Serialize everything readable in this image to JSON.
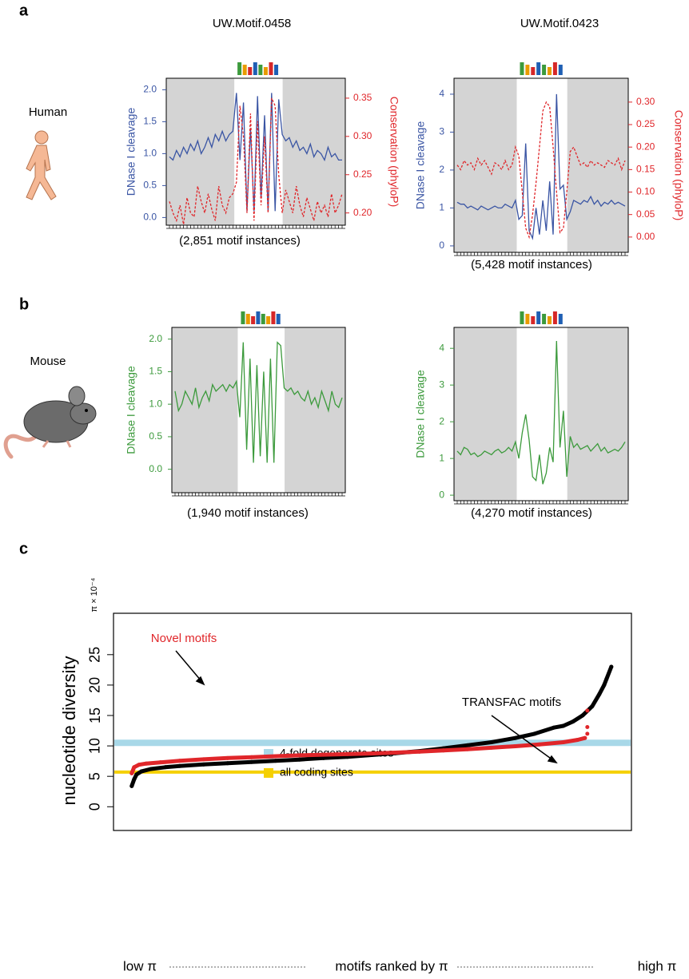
{
  "panels": [
    {
      "label": "a",
      "species": "Human"
    },
    {
      "label": "b",
      "species": "Mouse"
    },
    {
      "label": "c"
    }
  ],
  "chart_data": [
    {
      "type": "line",
      "title": "UW.Motif.0458",
      "x_label": "(2,851 motif instances)",
      "y_label": "DNase I cleavage",
      "y2_label": "Conservation (phyloP)",
      "ylim": [
        -0.12,
        2.18
      ],
      "yticks": [
        {
          "value": 0,
          "label": "0.0"
        },
        {
          "value": 0.5,
          "label": "0.5"
        },
        {
          "value": 1,
          "label": "1.0"
        },
        {
          "value": 1.5,
          "label": "1.5"
        },
        {
          "value": 2,
          "label": "2.0"
        }
      ],
      "y2lim": [
        0.184,
        0.376
      ],
      "y2ticks": [
        {
          "value": 0.2,
          "label": "0.20"
        },
        {
          "value": 0.25,
          "label": "0.25"
        },
        {
          "value": 0.3,
          "label": "0.30"
        },
        {
          "value": 0.35,
          "label": "0.35"
        }
      ],
      "series": [
        {
          "color": "#3a55a4",
          "axis": "y",
          "line_style": "solid",
          "values": [
            0.95,
            0.9,
            1.05,
            0.95,
            1.1,
            1.0,
            1.15,
            1.05,
            1.2,
            1.0,
            1.1,
            1.25,
            1.1,
            1.3,
            1.2,
            1.35,
            1.2,
            1.3,
            1.35,
            1.95,
            0.9,
            1.8,
            0.1,
            1.4,
            0.1,
            1.9,
            0.3,
            1.6,
            0.1,
            1.95,
            0.1,
            1.85,
            1.3,
            1.2,
            1.25,
            1.1,
            1.2,
            1.05,
            1.1,
            1.0,
            1.15,
            0.95,
            1.05,
            1.0,
            0.9,
            1.1,
            0.95,
            1.0,
            0.9,
            0.9
          ]
        },
        {
          "color": "#e0262a",
          "axis": "y2",
          "line_style": "dashed",
          "values": [
            0.215,
            0.2,
            0.19,
            0.21,
            0.185,
            0.22,
            0.2,
            0.195,
            0.235,
            0.215,
            0.2,
            0.225,
            0.205,
            0.19,
            0.235,
            0.21,
            0.2,
            0.22,
            0.225,
            0.24,
            0.34,
            0.3,
            0.2,
            0.33,
            0.19,
            0.32,
            0.21,
            0.3,
            0.2,
            0.35,
            0.34,
            0.25,
            0.2,
            0.23,
            0.215,
            0.2,
            0.235,
            0.21,
            0.195,
            0.22,
            0.205,
            0.19,
            0.215,
            0.2,
            0.21,
            0.195,
            0.225,
            0.2,
            0.21,
            0.225
          ]
        }
      ]
    },
    {
      "type": "line",
      "title": "UW.Motif.0423",
      "x_label": "(5,428 motif instances)",
      "y_label": "DNase I cleavage",
      "y2_label": "Conservation (phyloP)",
      "ylim": [
        -0.17,
        4.42
      ],
      "yticks": [
        0,
        1,
        2,
        3,
        4
      ],
      "y2lim": [
        -0.034,
        0.353
      ],
      "y2ticks": [
        {
          "value": 0,
          "label": "0.00"
        },
        {
          "value": 0.05,
          "label": "0.05"
        },
        {
          "value": 0.1,
          "label": "0.10"
        },
        {
          "value": 0.15,
          "label": "0.15"
        },
        {
          "value": 0.2,
          "label": "0.20"
        },
        {
          "value": 0.25,
          "label": "0.25"
        },
        {
          "value": 0.3,
          "label": "0.30"
        }
      ],
      "series": [
        {
          "color": "#3a55a4",
          "axis": "y",
          "line_style": "solid",
          "values": [
            1.15,
            1.1,
            1.1,
            1.0,
            1.05,
            1.0,
            0.95,
            1.05,
            1.0,
            0.95,
            1.0,
            1.05,
            1.0,
            1.0,
            1.1,
            1.05,
            1.0,
            1.2,
            0.7,
            0.8,
            2.7,
            0.4,
            0.2,
            1.0,
            0.3,
            1.2,
            0.4,
            1.7,
            0.3,
            4.0,
            1.5,
            1.6,
            0.7,
            0.9,
            1.2,
            1.15,
            1.1,
            1.2,
            1.15,
            1.3,
            1.1,
            1.2,
            1.05,
            1.15,
            1.1,
            1.2,
            1.1,
            1.15,
            1.1,
            1.05
          ]
        },
        {
          "color": "#e0262a",
          "axis": "y2",
          "line_style": "dashed",
          "values": [
            0.16,
            0.15,
            0.17,
            0.16,
            0.165,
            0.15,
            0.175,
            0.16,
            0.17,
            0.155,
            0.14,
            0.165,
            0.16,
            0.15,
            0.17,
            0.15,
            0.16,
            0.2,
            0.18,
            0.1,
            0.02,
            0.0,
            0.05,
            0.12,
            0.2,
            0.28,
            0.3,
            0.29,
            0.2,
            0.1,
            0.01,
            0.02,
            0.1,
            0.19,
            0.2,
            0.18,
            0.16,
            0.165,
            0.155,
            0.17,
            0.16,
            0.165,
            0.16,
            0.155,
            0.17,
            0.165,
            0.16,
            0.175,
            0.15,
            0.17
          ]
        }
      ]
    },
    {
      "type": "line",
      "x_label": "(1,940 motif instances)",
      "y_label": "DNase I cleavage",
      "ylim": [
        -0.36,
        2.18
      ],
      "yticks": [
        {
          "value": 0,
          "label": "0.0"
        },
        {
          "value": 0.5,
          "label": "0.5"
        },
        {
          "value": 1,
          "label": "1.0"
        },
        {
          "value": 1.5,
          "label": "1.5"
        },
        {
          "value": 2,
          "label": "2.0"
        }
      ],
      "series": [
        {
          "color": "#3c9a3c",
          "axis": "y",
          "line_style": "solid",
          "values": [
            1.2,
            0.9,
            1.0,
            1.2,
            1.1,
            1.0,
            1.25,
            0.95,
            1.1,
            1.2,
            1.05,
            1.3,
            1.2,
            1.25,
            1.3,
            1.2,
            1.3,
            1.25,
            1.35,
            0.8,
            1.95,
            0.3,
            1.7,
            0.1,
            1.6,
            0.2,
            1.5,
            0.1,
            1.7,
            0.1,
            1.95,
            1.9,
            1.25,
            1.2,
            1.25,
            1.15,
            1.2,
            1.1,
            1.05,
            1.2,
            1.0,
            1.1,
            0.95,
            1.2,
            1.05,
            0.9,
            1.2,
            1.0,
            0.95,
            1.1
          ]
        }
      ]
    },
    {
      "type": "line",
      "x_label": "(4,270 motif instances)",
      "y_label": "DNase I cleavage",
      "ylim": [
        -0.15,
        4.57
      ],
      "yticks": [
        0,
        1,
        2,
        3,
        4
      ],
      "series": [
        {
          "color": "#3c9a3c",
          "axis": "y",
          "line_style": "solid",
          "values": [
            1.2,
            1.1,
            1.3,
            1.25,
            1.1,
            1.15,
            1.05,
            1.1,
            1.2,
            1.15,
            1.1,
            1.2,
            1.25,
            1.15,
            1.2,
            1.3,
            1.2,
            1.45,
            1.0,
            1.7,
            2.2,
            1.5,
            0.5,
            0.4,
            1.1,
            0.3,
            0.6,
            1.3,
            0.9,
            4.2,
            1.3,
            2.3,
            0.5,
            1.6,
            1.3,
            1.4,
            1.25,
            1.3,
            1.35,
            1.2,
            1.3,
            1.4,
            1.2,
            1.3,
            1.15,
            1.2,
            1.25,
            1.2,
            1.3,
            1.45
          ]
        }
      ]
    },
    {
      "type": "ranked",
      "y_label": "nucleotide diversity",
      "y_unit": "π × 10⁻⁴",
      "x_labels": [
        "low π",
        "motifs ranked by π",
        "high π"
      ],
      "xlim": [
        -0.038,
        1.042
      ],
      "ylim": [
        -3.9,
        31.8
      ],
      "yticks": [
        0,
        5,
        10,
        15,
        20,
        25
      ],
      "series": [
        {
          "name": "TRANSFAC motifs",
          "color": "#000000",
          "x": [
            0,
            0.005,
            0.01,
            0.02,
            0.04,
            0.07,
            0.1,
            0.15,
            0.2,
            0.25,
            0.3,
            0.35,
            0.4,
            0.45,
            0.5,
            0.55,
            0.6,
            0.65,
            0.7,
            0.75,
            0.8,
            0.84,
            0.88,
            0.9,
            0.92,
            0.94,
            0.96,
            0.975,
            0.985,
            0.99,
            1.0
          ],
          "values": [
            3.4,
            4.5,
            5.3,
            5.8,
            6.2,
            6.5,
            6.7,
            6.95,
            7.15,
            7.35,
            7.55,
            7.75,
            8.0,
            8.2,
            8.5,
            8.8,
            9.15,
            9.6,
            10.1,
            10.6,
            11.3,
            12.0,
            13.0,
            13.3,
            14.0,
            15.0,
            16.5,
            18.5,
            20.0,
            21.0,
            23.0
          ]
        },
        {
          "name": "Novel motifs",
          "color": "#e0262a",
          "x": [
            0,
            0.005,
            0.015,
            0.03,
            0.06,
            0.1,
            0.15,
            0.2,
            0.25,
            0.3,
            0.35,
            0.4,
            0.45,
            0.5,
            0.55,
            0.6,
            0.65,
            0.7,
            0.75,
            0.8,
            0.85,
            0.9,
            0.93,
            0.945,
            null,
            0.95,
            null,
            0.95,
            null,
            0.95
          ],
          "values": [
            5.5,
            6.5,
            6.9,
            7.1,
            7.3,
            7.55,
            7.8,
            8.0,
            8.15,
            8.3,
            8.45,
            8.55,
            8.65,
            8.75,
            8.9,
            9.05,
            9.25,
            9.45,
            9.7,
            9.95,
            10.25,
            10.6,
            11.0,
            11.3,
            null,
            12.0,
            null,
            13.1,
            null,
            15.8
          ]
        }
      ],
      "reference_lines": [
        {
          "name": "4-fold degenerate sites",
          "value": 10.5,
          "color": "#a8d8e8"
        },
        {
          "name": "all coding sites",
          "value": 5.7,
          "color": "#f5d000"
        }
      ]
    }
  ]
}
